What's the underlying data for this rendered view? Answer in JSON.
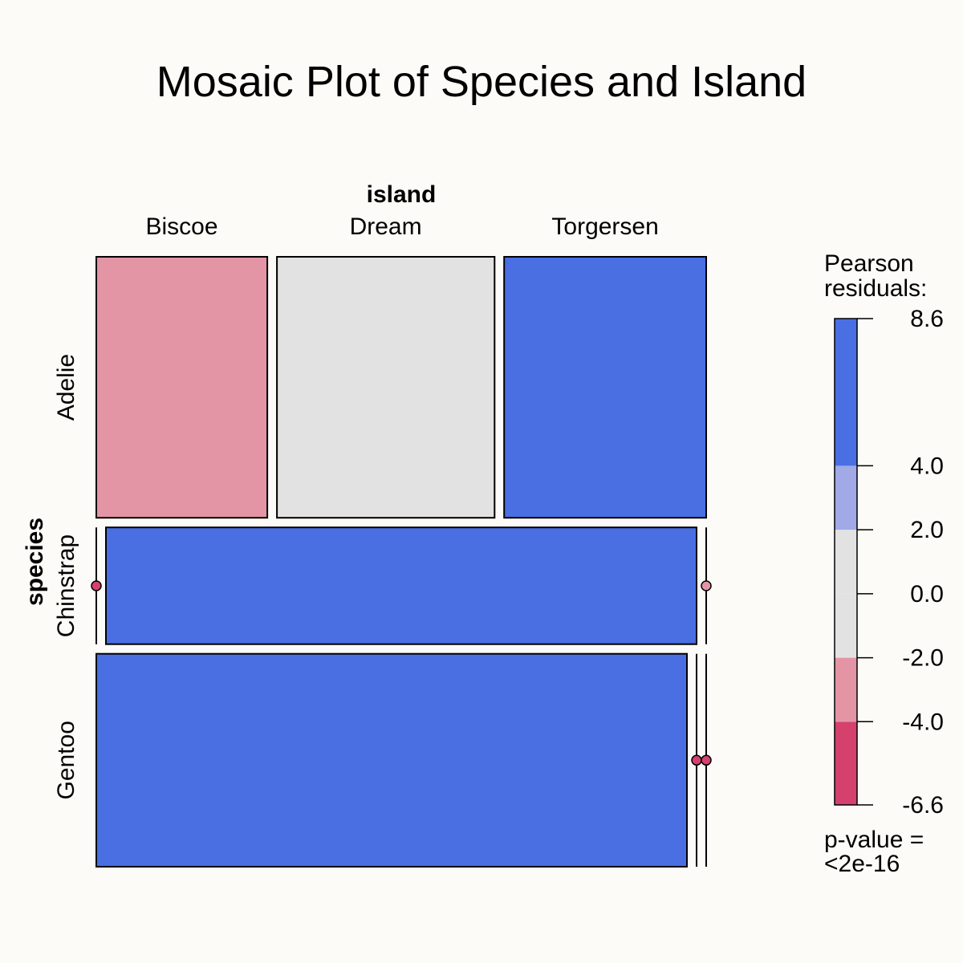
{
  "chart_data": {
    "type": "mosaic",
    "title": "Mosaic Plot of Species and Island",
    "col_variable": "island",
    "row_variable": "species",
    "columns": [
      "Biscoe",
      "Dream",
      "Torgersen"
    ],
    "rows": [
      "Adelie",
      "Chinstrap",
      "Gentoo"
    ],
    "counts": [
      [
        44,
        56,
        52
      ],
      [
        0,
        68,
        0
      ],
      [
        124,
        0,
        0
      ]
    ],
    "residuals": [
      [
        -3.2,
        0.4,
        6.8
      ],
      [
        -5.9,
        8.6,
        -3.1
      ],
      [
        8.6,
        -5.9,
        -4.6
      ]
    ],
    "legend": {
      "title_line1": "Pearson",
      "title_line2": "residuals:",
      "range": [
        -6.6,
        8.6
      ],
      "breaks": [
        -6.6,
        -4.0,
        -2.0,
        0.0,
        2.0,
        4.0,
        8.6
      ],
      "tick_labels": [
        "-6.6",
        "-4.0",
        "-2.0",
        "0.0",
        "2.0",
        "4.0",
        "8.6"
      ],
      "band_colors": [
        "#d5416d",
        "#e495a5",
        "#e2e2e2",
        "#e2e2e2",
        "#a1a9e6",
        "#4a6fe3"
      ],
      "pvalue_line1": "p-value =",
      "pvalue_line2": "<2e-16"
    },
    "colors": {
      "strong_pos": "#4a6fe3",
      "weak_pos": "#a1a9e6",
      "neutral": "#e2e2e2",
      "weak_neg": "#e495a5",
      "strong_neg": "#d5416d"
    }
  }
}
